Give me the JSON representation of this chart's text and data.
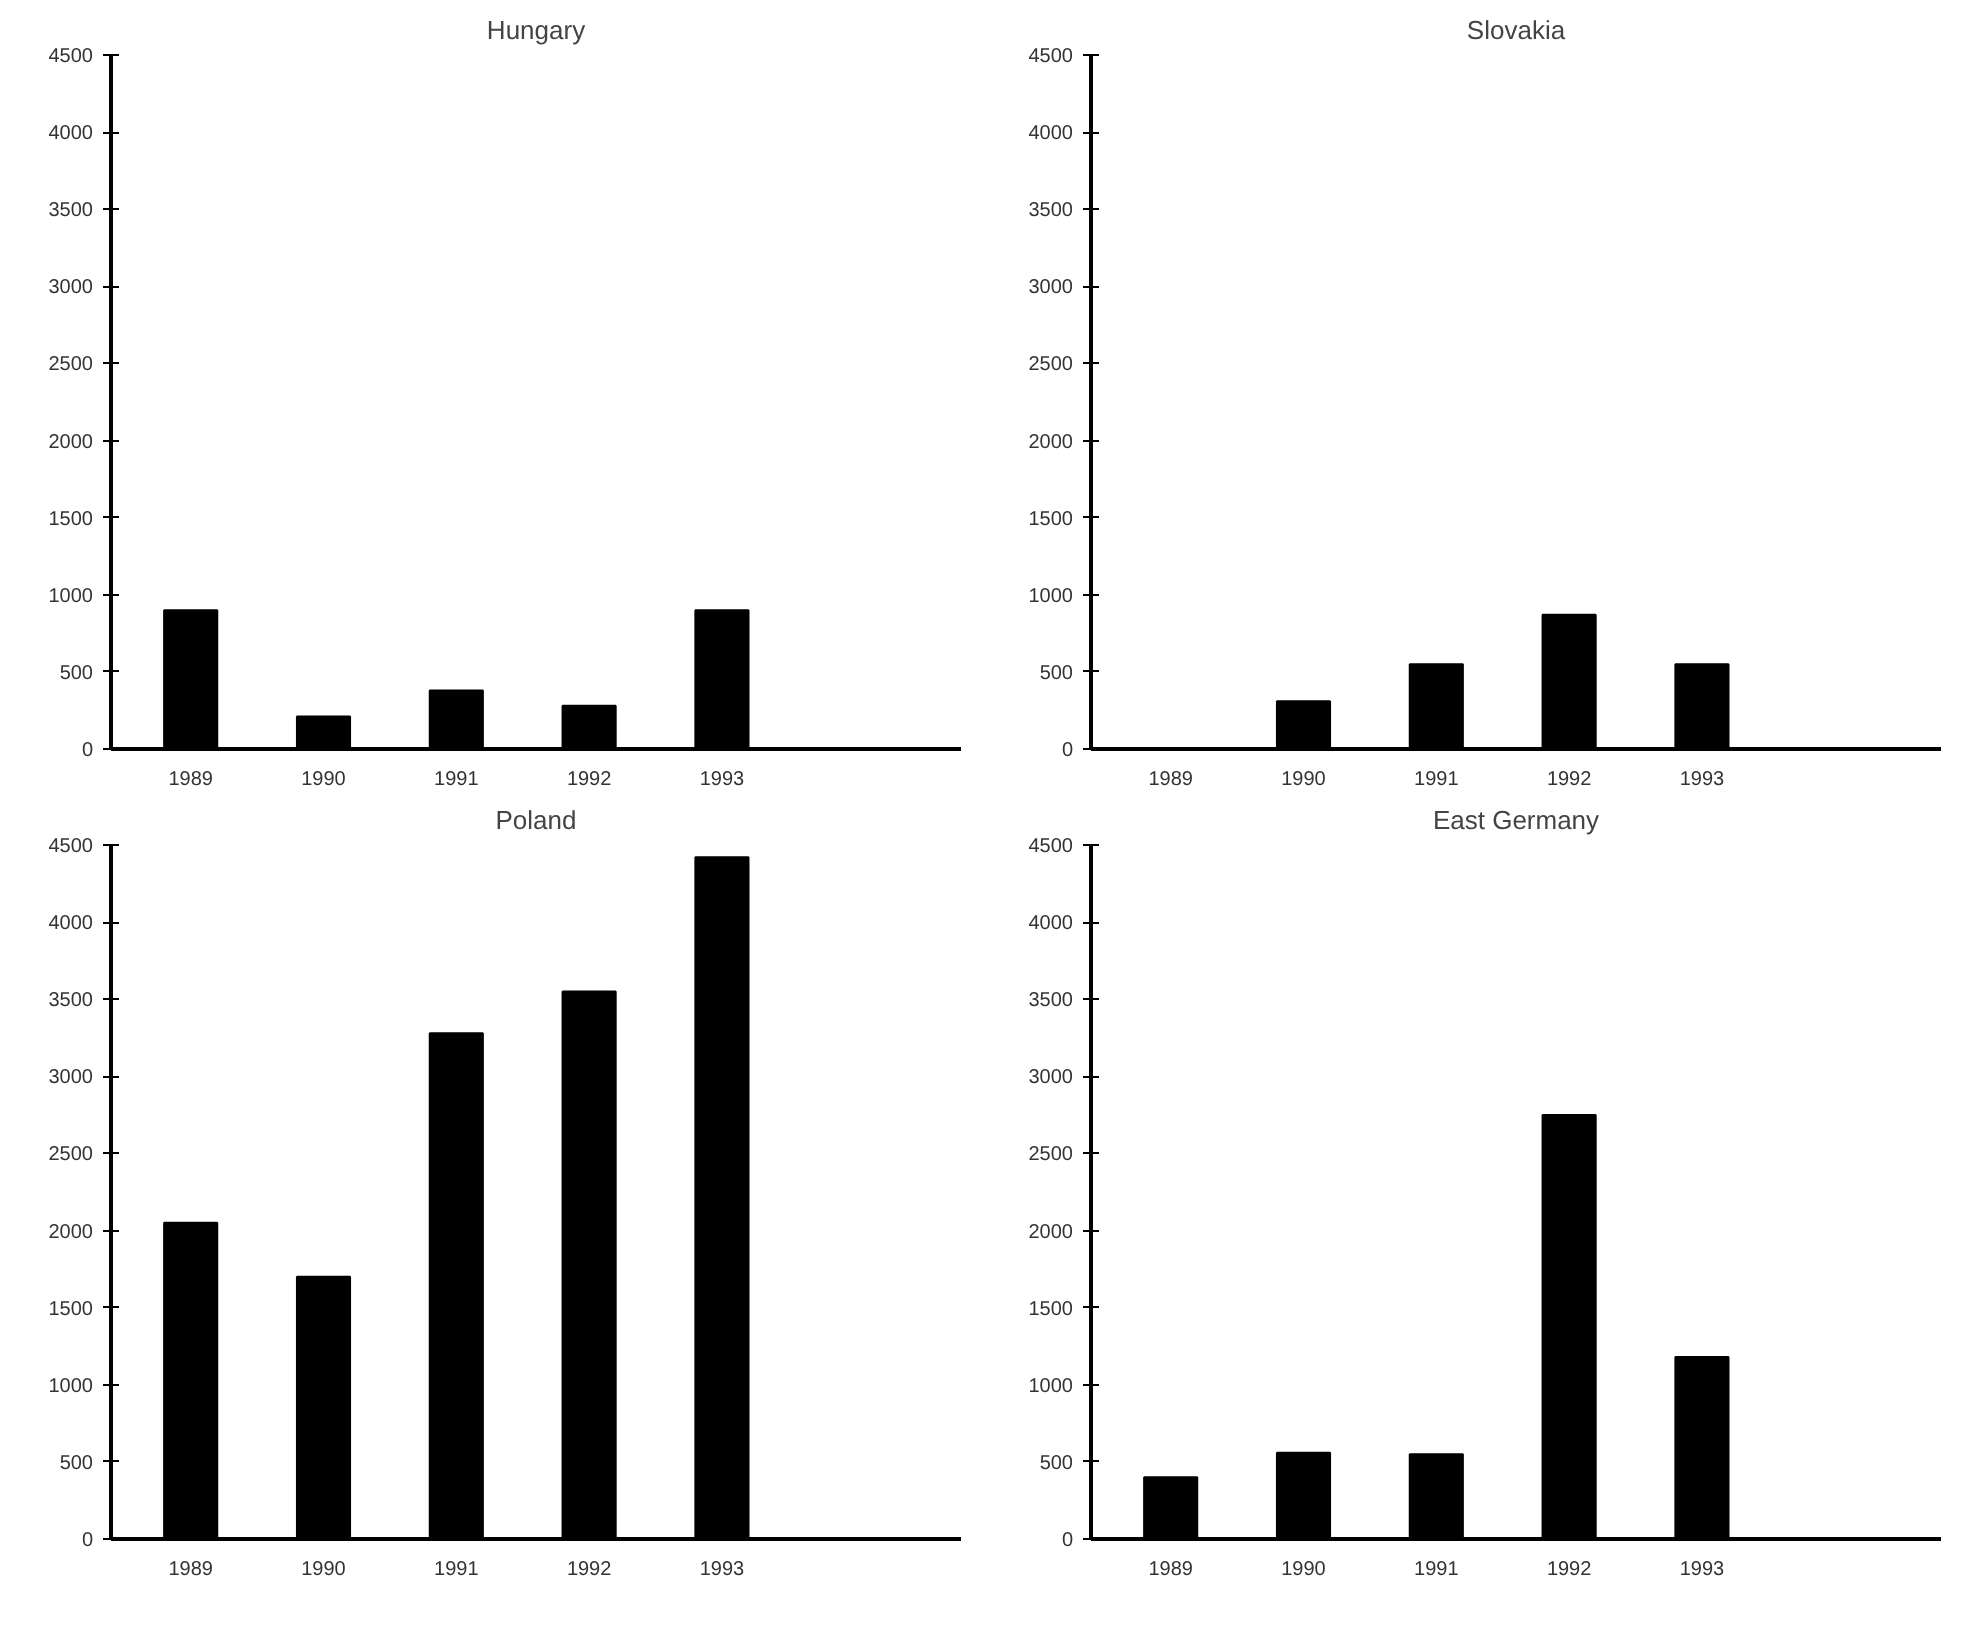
{
  "chart_data": [
    {
      "type": "bar",
      "title": "Hungary",
      "categories": [
        "1989",
        "1990",
        "1991",
        "1992",
        "1993"
      ],
      "values": [
        900,
        210,
        380,
        280,
        900
      ],
      "color": "#000000",
      "ylim": [
        0,
        4500
      ],
      "yticks": [
        0,
        500,
        1000,
        1500,
        2000,
        2500,
        3000,
        3500,
        4000,
        4500
      ],
      "grid": false
    },
    {
      "type": "bar",
      "title": "Slovakia",
      "categories": [
        "1989",
        "1990",
        "1991",
        "1992",
        "1993"
      ],
      "values": [
        null,
        310,
        550,
        870,
        550
      ],
      "color": "#000000",
      "ylim": [
        0,
        4500
      ],
      "yticks": [
        0,
        500,
        1000,
        1500,
        2000,
        2500,
        3000,
        3500,
        4000,
        4500
      ],
      "grid": false
    },
    {
      "type": "bar",
      "title": "Poland",
      "categories": [
        "1989",
        "1990",
        "1991",
        "1992",
        "1993"
      ],
      "values": [
        2050,
        1700,
        3280,
        3550,
        4420
      ],
      "color": "#000000",
      "ylim": [
        0,
        4500
      ],
      "yticks": [
        0,
        500,
        1000,
        1500,
        2000,
        2500,
        3000,
        3500,
        4000,
        4500
      ],
      "grid": false
    },
    {
      "type": "bar",
      "title": "East Germany",
      "categories": [
        "1989",
        "1990",
        "1991",
        "1992",
        "1993"
      ],
      "values": [
        400,
        560,
        550,
        2750,
        1180
      ],
      "color": "#000000",
      "ylim": [
        0,
        4500
      ],
      "yticks": [
        0,
        500,
        1000,
        1500,
        2000,
        2500,
        3000,
        3500,
        4000,
        4500
      ],
      "grid": false
    }
  ]
}
